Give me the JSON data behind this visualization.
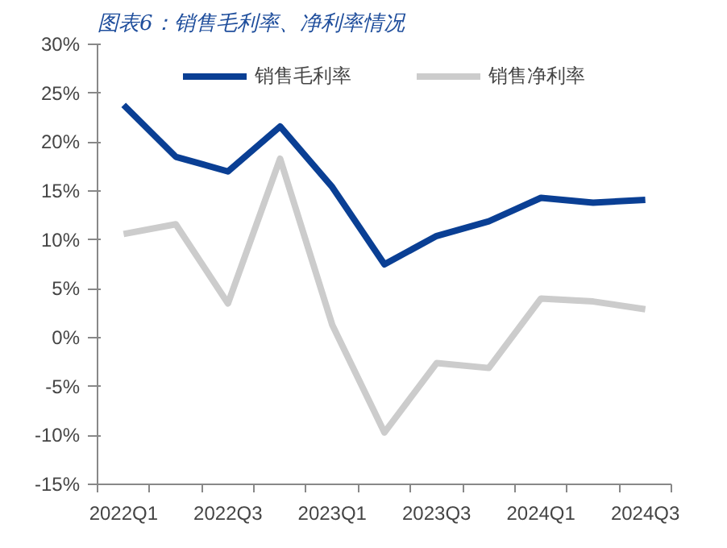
{
  "chart_data": {
    "type": "line",
    "title": "图表6：销售毛利率、净利率情况",
    "categories": [
      "2022Q1",
      null,
      "2022Q3",
      null,
      "2023Q1",
      null,
      "2023Q3",
      null,
      "2024Q1",
      null,
      "2024Q3"
    ],
    "series": [
      {
        "name": "销售毛利率",
        "color": "#0a3f94",
        "values": [
          23.8,
          18.5,
          17.0,
          21.6,
          15.4,
          7.5,
          10.4,
          11.9,
          14.3,
          13.8,
          14.1
        ]
      },
      {
        "name": "销售净利率",
        "color": "#cccccc",
        "values": [
          10.6,
          11.6,
          3.5,
          18.3,
          1.3,
          -9.7,
          -2.6,
          -3.1,
          4.0,
          3.7,
          2.9
        ]
      }
    ],
    "ylim": [
      -15,
      30
    ],
    "yticks": [
      {
        "value": -15,
        "label": "-15%"
      },
      {
        "value": -10,
        "label": "-10%"
      },
      {
        "value": -5,
        "label": "-5%"
      },
      {
        "value": 0,
        "label": "0%"
      },
      {
        "value": 5,
        "label": "5%"
      },
      {
        "value": 10,
        "label": "10%"
      },
      {
        "value": 15,
        "label": "15%"
      },
      {
        "value": 20,
        "label": "20%"
      },
      {
        "value": 25,
        "label": "25%"
      },
      {
        "value": 30,
        "label": "30%"
      }
    ],
    "grid": false,
    "legend": "top",
    "marker": "none",
    "line_style": "solid"
  }
}
